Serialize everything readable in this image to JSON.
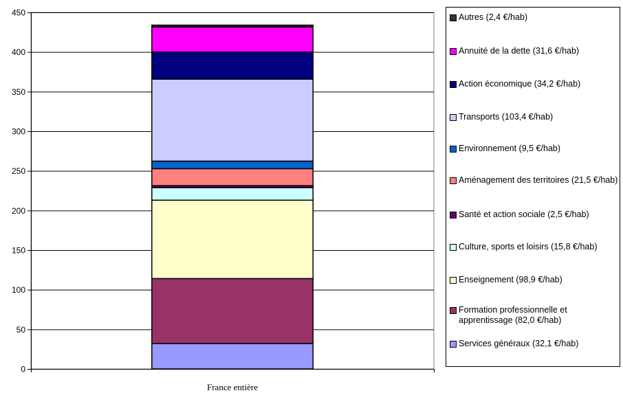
{
  "chart_data": {
    "type": "bar",
    "stacked": true,
    "categories": [
      "France entière"
    ],
    "ylim": [
      0,
      450
    ],
    "yticks": [
      0,
      50,
      100,
      150,
      200,
      250,
      300,
      350,
      400,
      450
    ],
    "grid": true,
    "legend_position": "right",
    "series": [
      {
        "name": "Services généraux (32,1 €/hab)",
        "values": [
          32.1
        ],
        "color": "#9999ff"
      },
      {
        "name": "Formation professionnelle et apprentissage (82,0 €/hab)",
        "values": [
          82.0
        ],
        "color": "#993366"
      },
      {
        "name": "Enseignement (98,9 €/hab)",
        "values": [
          98.9
        ],
        "color": "#ffffcc"
      },
      {
        "name": "Culture, sports et loisirs (15,8 €/hab)",
        "values": [
          15.8
        ],
        "color": "#ccffff"
      },
      {
        "name": "Santé et action sociale (2,5 €/hab)",
        "values": [
          2.5
        ],
        "color": "#660066"
      },
      {
        "name": "Aménagement des territoires (21,5 €/hab)",
        "values": [
          21.5
        ],
        "color": "#ff8080"
      },
      {
        "name": "Environnement (9,5 €/hab)",
        "values": [
          9.5
        ],
        "color": "#0066cc"
      },
      {
        "name": "Transports (103,4 €/hab)",
        "values": [
          103.4
        ],
        "color": "#ccccff"
      },
      {
        "name": "Action économique (34,2 €/hab)",
        "values": [
          34.2
        ],
        "color": "#000080"
      },
      {
        "name": "Annuité de la dette (31,6 €/hab)",
        "values": [
          31.6
        ],
        "color": "#ff00ff"
      },
      {
        "name": "Autres (2,4 €/hab)",
        "values": [
          2.4
        ],
        "color": "#333333"
      }
    ]
  }
}
